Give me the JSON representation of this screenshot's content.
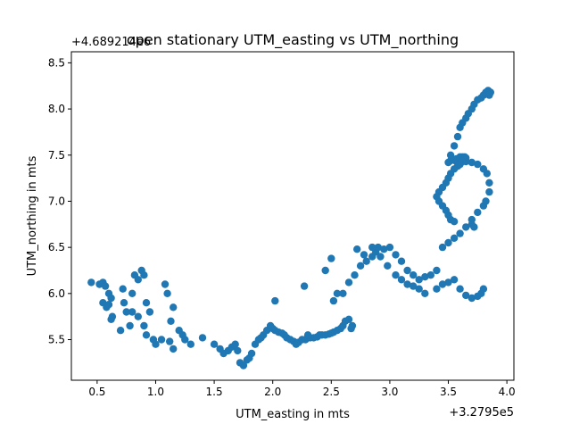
{
  "chart_data": {
    "type": "scatter",
    "title": "open stationary UTM_easting vs UTM_northing",
    "xlabel": "UTM_easting in mts",
    "ylabel": "UTM_northing in mts",
    "x_offset_label": "+3.2795e5",
    "y_offset_label": "+4.689214e6",
    "xlim": [
      0.28,
      4.06
    ],
    "ylim": [
      5.06,
      8.62
    ],
    "x_ticks": [
      0.5,
      1.0,
      1.5,
      2.0,
      2.5,
      3.0,
      3.5,
      4.0
    ],
    "x_tick_labels": [
      "0.5",
      "1.0",
      "1.5",
      "2.0",
      "2.5",
      "3.0",
      "3.5",
      "4.0"
    ],
    "y_ticks": [
      5.5,
      6.0,
      6.5,
      7.0,
      7.5,
      8.0,
      8.5
    ],
    "y_tick_labels": [
      "5.5",
      "6.0",
      "6.5",
      "7.0",
      "7.5",
      "8.0",
      "8.5"
    ],
    "grid": false,
    "marker_color": "#1f77b4",
    "x": [
      0.45,
      0.52,
      0.55,
      0.57,
      0.6,
      0.62,
      0.55,
      0.58,
      0.6,
      0.63,
      0.62,
      0.7,
      0.72,
      0.73,
      0.75,
      0.78,
      0.8,
      0.8,
      0.82,
      0.85,
      0.88,
      0.9,
      0.92,
      0.85,
      0.95,
      0.9,
      0.92,
      0.98,
      1.0,
      1.05,
      1.08,
      1.1,
      1.12,
      1.15,
      1.13,
      1.15,
      1.2,
      1.23,
      1.25,
      1.3,
      1.4,
      1.5,
      1.55,
      1.58,
      1.62,
      1.65,
      1.68,
      1.7,
      1.72,
      1.75,
      1.78,
      1.8,
      1.82,
      1.85,
      1.88,
      1.9,
      1.92,
      1.95,
      1.98,
      2.0,
      2.02,
      2.05,
      2.08,
      2.1,
      2.12,
      2.15,
      2.18,
      2.2,
      2.22,
      2.25,
      2.28,
      2.3,
      2.32,
      2.35,
      2.38,
      2.4,
      2.42,
      2.45,
      2.48,
      2.5,
      2.52,
      2.55,
      2.58,
      2.6,
      2.62,
      2.65,
      2.67,
      2.68,
      2.02,
      2.27,
      2.3,
      2.45,
      2.5,
      2.55,
      2.52,
      2.6,
      2.65,
      2.7,
      2.75,
      2.8,
      2.85,
      2.88,
      2.9,
      2.95,
      3.0,
      3.05,
      3.1,
      3.15,
      3.2,
      3.25,
      3.3,
      3.35,
      3.4,
      2.72,
      2.78,
      2.85,
      2.92,
      2.98,
      3.05,
      3.1,
      3.15,
      3.2,
      3.25,
      3.3,
      3.4,
      3.45,
      3.5,
      3.55,
      3.6,
      3.65,
      3.7,
      3.75,
      3.78,
      3.8,
      3.45,
      3.5,
      3.55,
      3.6,
      3.65,
      3.7,
      3.75,
      3.8,
      3.82,
      3.85,
      3.85,
      3.83,
      3.8,
      3.75,
      3.7,
      3.65,
      3.6,
      3.55,
      3.52,
      3.5,
      3.52,
      3.55,
      3.58,
      3.6,
      3.62,
      3.65,
      3.67,
      3.7,
      3.72,
      3.75,
      3.78,
      3.8,
      3.82,
      3.84,
      3.86,
      3.85,
      3.6,
      3.58,
      3.57,
      3.56,
      3.55,
      3.57,
      3.6,
      3.62,
      3.64,
      3.65,
      3.63,
      3.62,
      3.6,
      3.58,
      3.55,
      3.52,
      3.5,
      3.48,
      3.45,
      3.42,
      3.4,
      3.42,
      3.45,
      3.48,
      3.5,
      3.52,
      3.55,
      3.7,
      3.72
    ],
    "y": [
      6.12,
      6.1,
      6.12,
      6.08,
      6.0,
      5.95,
      5.9,
      5.85,
      5.88,
      5.75,
      5.72,
      5.6,
      6.05,
      5.9,
      5.8,
      5.65,
      5.8,
      6.0,
      6.2,
      6.15,
      6.25,
      6.2,
      5.9,
      5.75,
      5.8,
      5.65,
      5.55,
      5.5,
      5.45,
      5.5,
      6.1,
      6.0,
      5.48,
      5.4,
      5.7,
      5.85,
      5.6,
      5.55,
      5.5,
      5.45,
      5.52,
      5.45,
      5.4,
      5.35,
      5.38,
      5.42,
      5.45,
      5.38,
      5.25,
      5.22,
      5.28,
      5.3,
      5.35,
      5.45,
      5.5,
      5.52,
      5.55,
      5.6,
      5.65,
      5.62,
      5.6,
      5.58,
      5.57,
      5.55,
      5.52,
      5.5,
      5.48,
      5.45,
      5.47,
      5.5,
      5.5,
      5.52,
      5.52,
      5.52,
      5.53,
      5.55,
      5.55,
      5.55,
      5.56,
      5.57,
      5.58,
      5.6,
      5.62,
      5.65,
      5.7,
      5.72,
      5.62,
      5.65,
      5.92,
      6.08,
      5.55,
      6.25,
      6.38,
      6.0,
      5.92,
      6.0,
      6.12,
      6.2,
      6.3,
      6.35,
      6.4,
      6.45,
      6.5,
      6.48,
      6.5,
      6.42,
      6.35,
      6.25,
      6.2,
      6.15,
      6.18,
      6.2,
      6.25,
      6.48,
      6.42,
      6.5,
      6.4,
      6.3,
      6.2,
      6.15,
      6.1,
      6.08,
      6.05,
      6.0,
      6.05,
      6.1,
      6.12,
      6.15,
      6.05,
      5.98,
      5.95,
      5.97,
      6.0,
      6.05,
      6.5,
      6.55,
      6.6,
      6.65,
      6.72,
      6.8,
      6.88,
      6.95,
      7.0,
      7.1,
      7.2,
      7.3,
      7.35,
      7.4,
      7.42,
      7.43,
      7.45,
      7.45,
      7.44,
      7.42,
      7.5,
      7.6,
      7.7,
      7.8,
      7.85,
      7.9,
      7.95,
      8.0,
      8.05,
      8.1,
      8.12,
      8.15,
      8.18,
      8.2,
      8.18,
      8.15,
      7.48,
      7.45,
      7.43,
      7.44,
      7.45,
      7.46,
      7.47,
      7.48,
      7.48,
      7.47,
      7.45,
      7.43,
      7.4,
      7.38,
      7.35,
      7.3,
      7.25,
      7.2,
      7.15,
      7.1,
      7.05,
      7.0,
      6.95,
      6.9,
      6.85,
      6.8,
      6.78,
      6.75,
      6.72
    ]
  }
}
